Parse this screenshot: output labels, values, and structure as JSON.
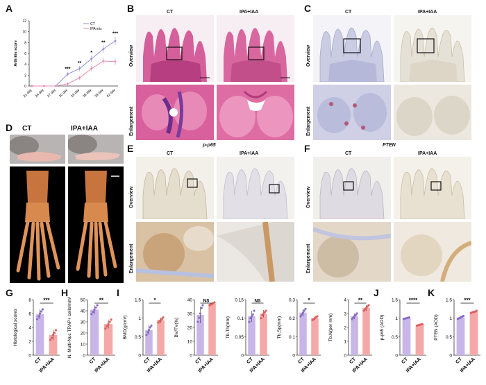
{
  "panels": {
    "A": "A",
    "B": "B",
    "C": "C",
    "D": "D",
    "E": "E",
    "F": "F",
    "G": "G",
    "H": "H",
    "I": "I",
    "J": "J",
    "K": "K"
  },
  "groups": {
    "ct": "CT",
    "ipa": "IPA+IAA"
  },
  "rows": {
    "overview": "Overview",
    "enlargement": "Enlargement"
  },
  "stains": {
    "e": "p-p65",
    "f": "PTEN"
  },
  "colors": {
    "ct": "#c9b6e8",
    "ipa": "#f4a9a8",
    "ct_dot": "#8a6dc9",
    "ipa_dot": "#e0605f",
    "he_pink": "#d8609c",
    "ihc_blue": "#c9cce3",
    "ihc_brown": "#caa57a"
  },
  "chart_data": [
    {
      "id": "A",
      "type": "line",
      "ylabel": "Arthritis score",
      "x": [
        "21 day",
        "24 day",
        "27 day",
        "30 day",
        "33 day",
        "36 day",
        "39 day",
        "42 day"
      ],
      "ylim": [
        0,
        12
      ],
      "yticks": [
        0,
        2,
        4,
        6,
        8,
        10,
        12
      ],
      "series": [
        {
          "name": "CT",
          "values": [
            0,
            0,
            0,
            2.2,
            3.2,
            5.0,
            6.8,
            8.3
          ],
          "err": [
            0,
            0,
            0,
            0.4,
            0.5,
            0.6,
            0.7,
            0.8
          ]
        },
        {
          "name": "IPA mix",
          "values": [
            0,
            0,
            0,
            0.4,
            1.5,
            3.2,
            4.6,
            4.5
          ],
          "err": [
            0,
            0,
            0,
            0.3,
            0.4,
            0.5,
            0.6,
            0.6
          ]
        }
      ],
      "sig": [
        {
          "x": "30 day",
          "text": "***"
        },
        {
          "x": "33 day",
          "text": "**"
        },
        {
          "x": "36 day",
          "text": "*"
        },
        {
          "x": "39 day",
          "text": "**"
        },
        {
          "x": "42 day",
          "text": "***"
        }
      ],
      "legend": "top-right"
    },
    {
      "id": "G",
      "type": "bar",
      "ylabel": "Histological scores",
      "categories": [
        "CT",
        "IPA+IAA"
      ],
      "values": [
        5.9,
        2.9
      ],
      "ylim": [
        0,
        8
      ],
      "yticks": [
        0,
        2,
        4,
        6,
        8
      ],
      "sig": "***",
      "points": [
        [
          5.2,
          5.6,
          6.0,
          6.3,
          6.6
        ],
        [
          2.2,
          2.5,
          2.9,
          3.2,
          3.6
        ]
      ]
    },
    {
      "id": "H",
      "type": "bar",
      "ylabel": "N. Multi-Nuc TRAP+ cells/mm²",
      "categories": [
        "CT",
        "IPA+IAA"
      ],
      "values": [
        41,
        28
      ],
      "ylim": [
        0,
        50
      ],
      "yticks": [
        0,
        10,
        20,
        30,
        40,
        50
      ],
      "sig": "**",
      "points": [
        [
          37,
          39,
          41,
          43,
          45
        ],
        [
          24,
          26,
          28,
          30,
          32
        ]
      ]
    },
    {
      "id": "I1",
      "type": "bar",
      "ylabel": "BMD(g/cm³)",
      "categories": [
        "CT",
        "IPA+IAA"
      ],
      "values": [
        0.68,
        0.95
      ],
      "ylim": [
        0,
        1.5
      ],
      "yticks": [
        0,
        0.5,
        1.0,
        1.5
      ],
      "sig": "*",
      "points": [
        [
          0.55,
          0.62,
          0.68,
          0.75,
          0.8
        ],
        [
          0.88,
          0.92,
          0.95,
          0.98,
          1.02
        ]
      ]
    },
    {
      "id": "I2",
      "type": "bar",
      "ylabel": "BV/TV(%)",
      "categories": [
        "CT",
        "IPA+IAA"
      ],
      "values": [
        29,
        37
      ],
      "ylim": [
        0,
        40
      ],
      "yticks": [
        0,
        10,
        20,
        30,
        40
      ],
      "sig": "NS",
      "points": [
        [
          24,
          27,
          30,
          34,
          36
        ],
        [
          36,
          36.5,
          37,
          37.5,
          38
        ]
      ]
    },
    {
      "id": "I3",
      "type": "bar",
      "ylabel": "Tb.Th(mm)",
      "categories": [
        "CT",
        "IPA+IAA"
      ],
      "values": [
        0.105,
        0.112
      ],
      "ylim": [
        0,
        0.15
      ],
      "yticks": [
        0,
        0.05,
        0.1,
        0.15
      ],
      "sig": "NS",
      "points": [
        [
          0.09,
          0.1,
          0.105,
          0.11,
          0.12
        ],
        [
          0.1,
          0.108,
          0.112,
          0.116,
          0.12
        ]
      ]
    },
    {
      "id": "I4",
      "type": "bar",
      "ylabel": "Tb.Sp(mm)",
      "categories": [
        "CT",
        "IPA+IAA"
      ],
      "values": [
        0.23,
        0.2
      ],
      "ylim": [
        0,
        0.3
      ],
      "yticks": [
        0,
        0.1,
        0.2,
        0.3
      ],
      "sig": "*",
      "points": [
        [
          0.21,
          0.22,
          0.23,
          0.24,
          0.25
        ],
        [
          0.19,
          0.195,
          0.2,
          0.205,
          0.21
        ]
      ]
    },
    {
      "id": "I5",
      "type": "bar",
      "ylabel": "Tb.N(per mm)",
      "categories": [
        "CT",
        "IPA+IAA"
      ],
      "values": [
        2.8,
        3.4
      ],
      "ylim": [
        0,
        4
      ],
      "yticks": [
        0,
        1,
        2,
        3,
        4
      ],
      "sig": "**",
      "points": [
        [
          2.6,
          2.7,
          2.8,
          2.9,
          3.0
        ],
        [
          3.2,
          3.3,
          3.4,
          3.5,
          3.6
        ]
      ]
    },
    {
      "id": "J",
      "type": "bar",
      "ylabel": "p-p65 (AOD)",
      "categories": [
        "CT",
        "IPA+IAA"
      ],
      "values": [
        1.0,
        0.82
      ],
      "ylim": [
        0,
        1.5
      ],
      "yticks": [
        0,
        0.5,
        1.0,
        1.5
      ],
      "sig": "****",
      "points": [
        [
          0.98,
          0.99,
          1.0,
          1.01,
          1.02
        ],
        [
          0.8,
          0.81,
          0.82,
          0.83,
          0.84
        ]
      ]
    },
    {
      "id": "K",
      "type": "bar",
      "ylabel": "PTEN (AOD)",
      "categories": [
        "CT",
        "IPA+IAA"
      ],
      "values": [
        1.02,
        1.17
      ],
      "ylim": [
        0,
        1.5
      ],
      "yticks": [
        0,
        0.5,
        1.0,
        1.5
      ],
      "sig": "***",
      "points": [
        [
          0.98,
          1.0,
          1.02,
          1.04,
          1.06
        ],
        [
          1.14,
          1.16,
          1.17,
          1.18,
          1.2
        ]
      ]
    }
  ]
}
